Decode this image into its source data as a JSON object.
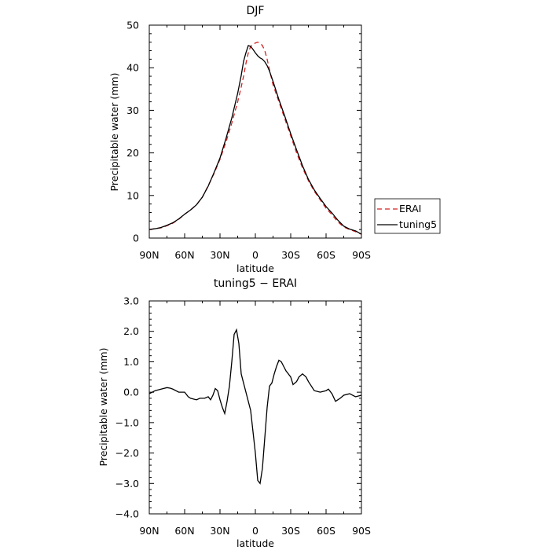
{
  "chart_data": [
    {
      "type": "line",
      "title": "DJF",
      "xlabel": "latitude",
      "ylabel": "Precipitable water (mm)",
      "xlim": [
        90,
        -90
      ],
      "ylim": [
        0,
        50
      ],
      "x_ticks": [
        90,
        60,
        30,
        0,
        -30,
        -60,
        -90
      ],
      "x_tick_labels": [
        "90N",
        "60N",
        "30N",
        "0",
        "30S",
        "60S",
        "90S"
      ],
      "y_ticks": [
        0,
        10,
        20,
        30,
        40,
        50
      ],
      "y_tick_labels": [
        "0",
        "10",
        "20",
        "30",
        "40",
        "50"
      ],
      "grid": false,
      "legend_position": "right",
      "series": [
        {
          "name": "ERAI",
          "color": "#d42020",
          "dash": "dashed",
          "x": [
            90,
            85,
            80,
            75,
            70,
            65,
            60,
            55,
            50,
            45,
            40,
            35,
            30,
            25,
            20,
            15,
            12,
            10,
            8,
            6,
            4,
            2,
            0,
            -2,
            -4,
            -6,
            -8,
            -10,
            -12,
            -15,
            -20,
            -25,
            -30,
            -35,
            -40,
            -45,
            -50,
            -55,
            -60,
            -65,
            -70,
            -75,
            -80,
            -85,
            -90
          ],
          "y": [
            2.0,
            2.2,
            2.4,
            2.9,
            3.5,
            4.4,
            5.6,
            6.6,
            7.8,
            9.6,
            12.3,
            15.2,
            18.5,
            22.5,
            27.0,
            32.0,
            35.5,
            38.0,
            41.0,
            43.5,
            45.0,
            45.5,
            45.8,
            46.0,
            45.8,
            45.2,
            44.0,
            42.0,
            39.5,
            36.0,
            32.0,
            28.0,
            24.0,
            20.0,
            16.5,
            13.5,
            11.0,
            9.0,
            7.0,
            5.5,
            3.8,
            2.6,
            2.0,
            1.5,
            0.9
          ]
        },
        {
          "name": "tuning5",
          "color": "#000000",
          "dash": "solid",
          "x": [
            90,
            85,
            80,
            75,
            70,
            65,
            60,
            55,
            50,
            45,
            40,
            35,
            30,
            25,
            20,
            15,
            12,
            10,
            8,
            6,
            4,
            2,
            0,
            -2,
            -4,
            -6,
            -8,
            -10,
            -12,
            -15,
            -20,
            -25,
            -30,
            -35,
            -40,
            -45,
            -50,
            -55,
            -60,
            -65,
            -70,
            -75,
            -80,
            -85,
            -90
          ],
          "y": [
            2.0,
            2.2,
            2.5,
            3.0,
            3.6,
            4.5,
            5.6,
            6.6,
            7.8,
            9.6,
            12.2,
            15.4,
            18.8,
            23.3,
            28.2,
            34.0,
            38.2,
            41.5,
            43.5,
            45.2,
            45.0,
            44.3,
            43.5,
            42.8,
            42.3,
            42.0,
            41.4,
            40.5,
            39.2,
            36.8,
            32.5,
            28.6,
            24.5,
            20.7,
            17.0,
            13.8,
            11.3,
            9.3,
            7.4,
            5.9,
            4.2,
            2.8,
            2.1,
            1.7,
            0.9
          ]
        }
      ]
    },
    {
      "type": "line",
      "title": "tuning5 − ERAI",
      "xlabel": "latitude",
      "ylabel": "Precipitable water (mm)",
      "xlim": [
        90,
        -90
      ],
      "ylim": [
        -4.0,
        3.0
      ],
      "x_ticks": [
        90,
        60,
        30,
        0,
        -30,
        -60,
        -90
      ],
      "x_tick_labels": [
        "90N",
        "60N",
        "30N",
        "0",
        "30S",
        "60S",
        "90S"
      ],
      "y_ticks": [
        3.0,
        2.0,
        1.0,
        0.0,
        -1.0,
        -2.0,
        -3.0,
        -4.0
      ],
      "y_tick_labels": [
        "3.0",
        "2.0",
        "1.0",
        "0.0",
        "−1.0",
        "−2.0",
        "−3.0",
        "−4.0"
      ],
      "grid": false,
      "series": [
        {
          "color": "#000000",
          "dash": "solid",
          "x": [
            90,
            85,
            80,
            75,
            72,
            70,
            65,
            60,
            57,
            55,
            50,
            47,
            45,
            43,
            40,
            38,
            36,
            34,
            32,
            30,
            28,
            26,
            24,
            22,
            20,
            18,
            16,
            14,
            12,
            10,
            8,
            6,
            4,
            2,
            0,
            -2,
            -4,
            -6,
            -8,
            -10,
            -12,
            -14,
            -16,
            -18,
            -20,
            -22,
            -24,
            -26,
            -28,
            -30,
            -32,
            -35,
            -37,
            -40,
            -43,
            -45,
            -50,
            -55,
            -60,
            -62,
            -65,
            -68,
            -70,
            -72,
            -75,
            -80,
            -85,
            -90
          ],
          "y": [
            -0.05,
            0.05,
            0.1,
            0.15,
            0.13,
            0.1,
            0.0,
            0.0,
            -0.15,
            -0.2,
            -0.25,
            -0.2,
            -0.2,
            -0.2,
            -0.15,
            -0.25,
            -0.1,
            0.12,
            0.05,
            -0.25,
            -0.5,
            -0.7,
            -0.3,
            0.2,
            1.0,
            1.9,
            2.05,
            1.6,
            0.6,
            0.3,
            0.0,
            -0.3,
            -0.6,
            -1.3,
            -2.0,
            -2.9,
            -3.0,
            -2.5,
            -1.5,
            -0.5,
            0.2,
            0.3,
            0.6,
            0.85,
            1.05,
            1.0,
            0.85,
            0.7,
            0.6,
            0.5,
            0.25,
            0.35,
            0.5,
            0.6,
            0.5,
            0.35,
            0.05,
            0.0,
            0.05,
            0.1,
            -0.05,
            -0.3,
            -0.25,
            -0.2,
            -0.1,
            -0.05,
            -0.15,
            -0.1
          ]
        }
      ]
    }
  ]
}
